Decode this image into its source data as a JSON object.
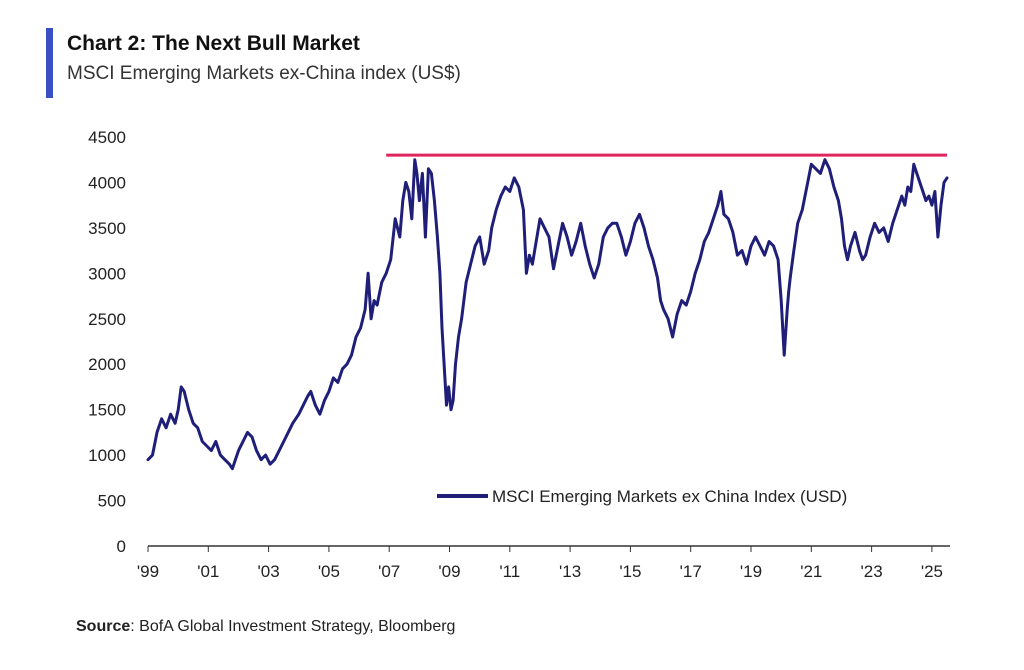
{
  "header": {
    "title": "Chart 2: The Next Bull Market",
    "subtitle": "MSCI Emerging Markets ex-China index (US$)"
  },
  "footer": {
    "source_label": "Source",
    "source_text": ": BofA Global Investment Strategy, Bloomberg"
  },
  "colors": {
    "accent": "#3b4fc4",
    "series": "#1f1f7a",
    "reference_line": "#e0245e",
    "axis": "#333333"
  },
  "chart_data": {
    "type": "line",
    "title": "Chart 2: The Next Bull Market",
    "subtitle": "MSCI Emerging Markets ex-China index (US$)",
    "xlabel": "",
    "ylabel": "",
    "xlim": [
      1999.0,
      2025.6
    ],
    "ylim": [
      0,
      4500
    ],
    "y_ticks": [
      0,
      500,
      1000,
      1500,
      2000,
      2500,
      3000,
      3500,
      4000,
      4500
    ],
    "x_ticks": [
      {
        "value": 1999,
        "label": "'99"
      },
      {
        "value": 2001,
        "label": "'01"
      },
      {
        "value": 2003,
        "label": "'03"
      },
      {
        "value": 2005,
        "label": "'05"
      },
      {
        "value": 2007,
        "label": "'07"
      },
      {
        "value": 2009,
        "label": "'09"
      },
      {
        "value": 2011,
        "label": "'11"
      },
      {
        "value": 2013,
        "label": "'13"
      },
      {
        "value": 2015,
        "label": "'15"
      },
      {
        "value": 2017,
        "label": "'17"
      },
      {
        "value": 2019,
        "label": "'19"
      },
      {
        "value": 2021,
        "label": "'21"
      },
      {
        "value": 2023,
        "label": "'23"
      },
      {
        "value": 2025,
        "label": "'25"
      }
    ],
    "grid": false,
    "legend": {
      "position": "bottom-right",
      "entries": [
        "MSCI Emerging Markets ex China Index (USD)"
      ]
    },
    "reference_line": {
      "y": 4300,
      "x_start": 2006.9,
      "x_end": 2025.5,
      "label": ""
    },
    "series": [
      {
        "name": "MSCI Emerging Markets ex China Index (USD)",
        "x": [
          1999.0,
          1999.15,
          1999.3,
          1999.45,
          1999.6,
          1999.75,
          1999.9,
          2000.0,
          2000.1,
          2000.2,
          2000.35,
          2000.5,
          2000.65,
          2000.8,
          2000.95,
          2001.1,
          2001.25,
          2001.4,
          2001.55,
          2001.7,
          2001.8,
          2001.9,
          2002.0,
          2002.15,
          2002.3,
          2002.45,
          2002.6,
          2002.75,
          2002.9,
          2003.05,
          2003.2,
          2003.35,
          2003.5,
          2003.65,
          2003.8,
          2004.0,
          2004.15,
          2004.3,
          2004.4,
          2004.55,
          2004.7,
          2004.85,
          2005.0,
          2005.15,
          2005.3,
          2005.45,
          2005.6,
          2005.75,
          2005.9,
          2006.05,
          2006.2,
          2006.3,
          2006.4,
          2006.5,
          2006.6,
          2006.75,
          2006.9,
          2007.05,
          2007.2,
          2007.35,
          2007.45,
          2007.55,
          2007.65,
          2007.75,
          2007.85,
          2007.92,
          2008.0,
          2008.1,
          2008.2,
          2008.3,
          2008.4,
          2008.5,
          2008.6,
          2008.68,
          2008.75,
          2008.82,
          2008.9,
          2008.97,
          2009.05,
          2009.12,
          2009.2,
          2009.3,
          2009.4,
          2009.55,
          2009.7,
          2009.85,
          2010.0,
          2010.15,
          2010.3,
          2010.4,
          2010.55,
          2010.7,
          2010.85,
          2011.0,
          2011.15,
          2011.3,
          2011.45,
          2011.55,
          2011.65,
          2011.75,
          2011.85,
          2012.0,
          2012.15,
          2012.3,
          2012.45,
          2012.6,
          2012.75,
          2012.9,
          2013.05,
          2013.2,
          2013.35,
          2013.5,
          2013.65,
          2013.8,
          2013.95,
          2014.1,
          2014.25,
          2014.4,
          2014.55,
          2014.7,
          2014.85,
          2015.0,
          2015.15,
          2015.3,
          2015.45,
          2015.6,
          2015.75,
          2015.9,
          2016.0,
          2016.1,
          2016.25,
          2016.4,
          2016.55,
          2016.7,
          2016.85,
          2017.0,
          2017.15,
          2017.3,
          2017.45,
          2017.6,
          2017.75,
          2017.9,
          2018.0,
          2018.1,
          2018.25,
          2018.4,
          2018.55,
          2018.7,
          2018.85,
          2019.0,
          2019.15,
          2019.3,
          2019.45,
          2019.6,
          2019.75,
          2019.9,
          2020.0,
          2020.1,
          2020.2,
          2020.25,
          2020.3,
          2020.4,
          2020.55,
          2020.7,
          2020.85,
          2021.0,
          2021.15,
          2021.3,
          2021.45,
          2021.6,
          2021.75,
          2021.9,
          2022.0,
          2022.1,
          2022.2,
          2022.3,
          2022.45,
          2022.6,
          2022.7,
          2022.8,
          2022.95,
          2023.1,
          2023.25,
          2023.4,
          2023.55,
          2023.7,
          2023.85,
          2024.0,
          2024.1,
          2024.2,
          2024.3,
          2024.4,
          2024.5,
          2024.6,
          2024.7,
          2024.8,
          2024.9,
          2025.0,
          2025.1,
          2025.2,
          2025.3,
          2025.4,
          2025.5
        ],
        "values": [
          950,
          1000,
          1250,
          1400,
          1300,
          1450,
          1350,
          1500,
          1750,
          1700,
          1500,
          1350,
          1300,
          1150,
          1100,
          1050,
          1150,
          1000,
          950,
          900,
          850,
          950,
          1050,
          1150,
          1250,
          1200,
          1050,
          950,
          1000,
          900,
          950,
          1050,
          1150,
          1250,
          1350,
          1450,
          1550,
          1650,
          1700,
          1550,
          1450,
          1600,
          1700,
          1850,
          1800,
          1950,
          2000,
          2100,
          2300,
          2400,
          2600,
          3000,
          2500,
          2700,
          2650,
          2900,
          3000,
          3150,
          3600,
          3400,
          3800,
          4000,
          3900,
          3600,
          4250,
          4100,
          3800,
          4100,
          3400,
          4150,
          4100,
          3800,
          3400,
          3000,
          2400,
          2000,
          1550,
          1750,
          1500,
          1600,
          2000,
          2300,
          2500,
          2900,
          3100,
          3300,
          3400,
          3100,
          3250,
          3500,
          3700,
          3850,
          3950,
          3900,
          4050,
          3950,
          3700,
          3000,
          3200,
          3100,
          3300,
          3600,
          3500,
          3400,
          3050,
          3300,
          3550,
          3400,
          3200,
          3350,
          3550,
          3300,
          3100,
          2950,
          3100,
          3400,
          3500,
          3550,
          3550,
          3400,
          3200,
          3350,
          3550,
          3650,
          3500,
          3300,
          3150,
          2950,
          2700,
          2600,
          2500,
          2300,
          2550,
          2700,
          2650,
          2800,
          3000,
          3150,
          3350,
          3450,
          3600,
          3750,
          3900,
          3650,
          3600,
          3450,
          3200,
          3250,
          3100,
          3300,
          3400,
          3300,
          3200,
          3350,
          3300,
          3150,
          2700,
          2100,
          2600,
          2800,
          2950,
          3200,
          3550,
          3700,
          3950,
          4200,
          4150,
          4100,
          4250,
          4150,
          3950,
          3800,
          3600,
          3300,
          3150,
          3300,
          3450,
          3250,
          3150,
          3200,
          3400,
          3550,
          3450,
          3500,
          3350,
          3550,
          3700,
          3850,
          3750,
          3950,
          3900,
          4200,
          4100,
          4000,
          3900,
          3800,
          3850,
          3750,
          3900,
          3400,
          3750,
          4000,
          4050
        ]
      }
    ]
  }
}
